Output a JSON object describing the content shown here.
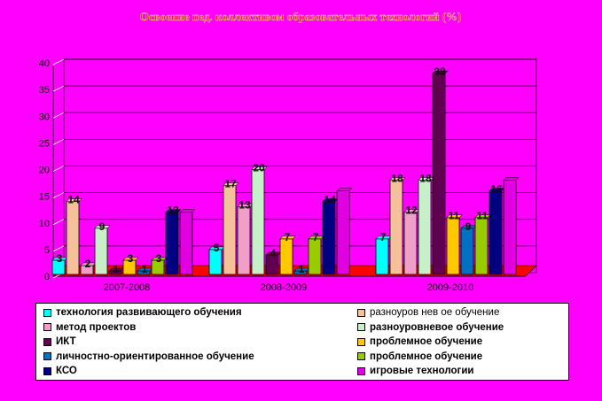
{
  "chart_data": {
    "type": "bar",
    "title": "Освоение пед. коллективом образовательных технологий (%)",
    "xlabel": "",
    "ylabel": "",
    "ylim": [
      0,
      40
    ],
    "yticks": [
      "0",
      "5",
      "10",
      "15",
      "20",
      "25",
      "30",
      "35",
      "40"
    ],
    "categories": [
      "2007-2008",
      "2008-2009",
      "2009-2010"
    ],
    "legend_position": "bottom",
    "grid": true,
    "series": [
      {
        "name": "технология развивающего обучения",
        "color": "#00ffff",
        "values": [
          3,
          5,
          7
        ],
        "labels": [
          "3",
          "5",
          "7"
        ]
      },
      {
        "name": "разноуров нев ое обучение",
        "color": "#f5c09a",
        "values": [
          14,
          17,
          18
        ],
        "labels": [
          "14",
          "17",
          "18"
        ]
      },
      {
        "name": "метод проектов",
        "color": "#f0a0c8",
        "values": [
          2,
          13,
          12
        ],
        "labels": [
          "2",
          "13",
          "12"
        ]
      },
      {
        "name": "разноуровневое обучение",
        "color": "#c8f0c8",
        "values": [
          9,
          20,
          18
        ],
        "labels": [
          "9",
          "20",
          "18"
        ]
      },
      {
        "name": "ИКТ",
        "color": "#600050",
        "values": [
          1,
          4,
          38
        ],
        "labels": [
          "1",
          "4",
          "38"
        ]
      },
      {
        "name": "проблемное обучение",
        "color": "#ffc800",
        "values": [
          3,
          7,
          11
        ],
        "labels": [
          "3",
          "7",
          "11"
        ]
      },
      {
        "name": "личностно-ориентированное обучение",
        "color": "#0070c0",
        "values": [
          1,
          1,
          9
        ],
        "labels": [
          "1",
          "1",
          "9"
        ]
      },
      {
        "name": "проблемное обучение",
        "color": "#99cc00",
        "values": [
          3,
          7,
          11
        ],
        "labels": [
          "3",
          "7",
          "11"
        ]
      },
      {
        "name": "КСО",
        "color": "#000080",
        "values": [
          12,
          14,
          16
        ],
        "labels": [
          "12",
          "14",
          "16"
        ]
      },
      {
        "name": "игровые технологии",
        "color": "#e000e0",
        "values": [
          12,
          16,
          18
        ],
        "labels": [
          "",
          "",
          ""
        ]
      }
    ]
  }
}
